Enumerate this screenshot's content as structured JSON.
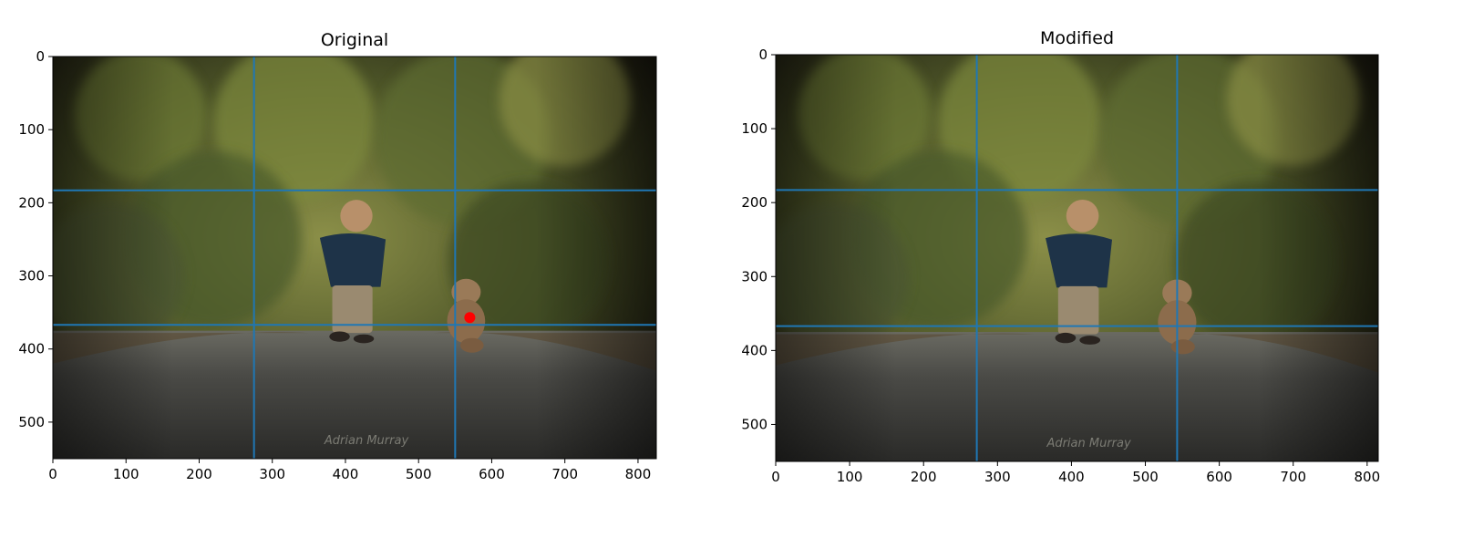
{
  "chart_data": [
    {
      "type": "image",
      "title": "Original",
      "image_description": "boy walking on gravel path toward teddy bear, blurred green background",
      "xlim": [
        0,
        825
      ],
      "ylim": [
        550,
        0
      ],
      "xticks": [
        0,
        100,
        200,
        300,
        400,
        500,
        600,
        700,
        800
      ],
      "yticks": [
        0,
        100,
        200,
        300,
        400,
        500
      ],
      "vlines": [
        275,
        550
      ],
      "hlines": [
        183,
        367
      ],
      "line_color": "#1f77b4",
      "marker": {
        "x": 570,
        "y": 357,
        "color": "#ff0000"
      },
      "watermark": "Adrian Murray"
    },
    {
      "type": "image",
      "title": "Modified",
      "image_description": "boy walking on gravel path with teddy bear shifted onto the right vertical third line",
      "xlim": [
        0,
        815
      ],
      "ylim": [
        550,
        0
      ],
      "xticks": [
        0,
        100,
        200,
        300,
        400,
        500,
        600,
        700,
        800
      ],
      "yticks": [
        0,
        100,
        200,
        300,
        400,
        500
      ],
      "vlines": [
        272,
        543
      ],
      "hlines": [
        183,
        367
      ],
      "line_color": "#1f77b4",
      "watermark": "Adrian Murray"
    }
  ]
}
